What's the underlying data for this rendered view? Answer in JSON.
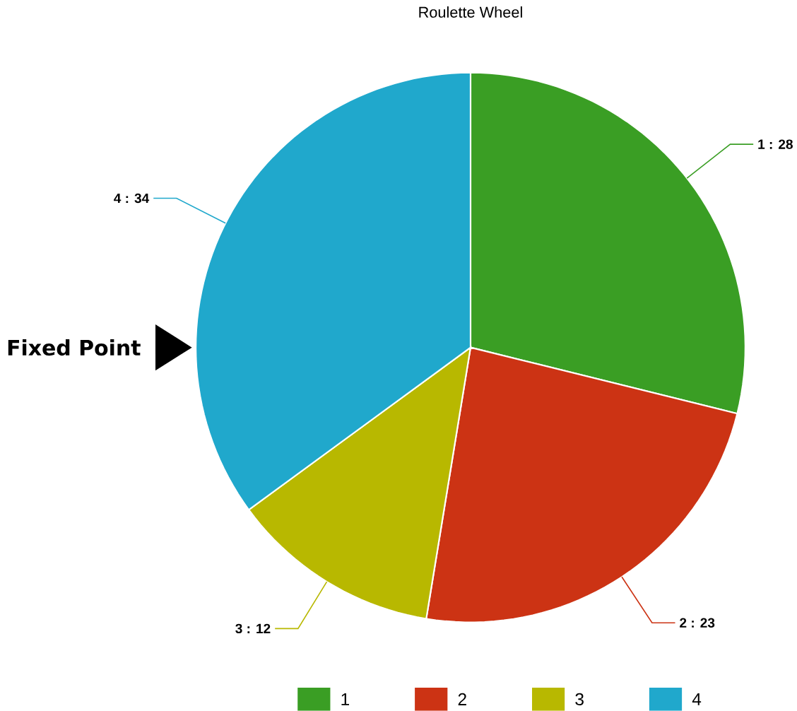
{
  "chart_data": {
    "type": "pie",
    "title": "Roulette Wheel",
    "categories": [
      "1",
      "2",
      "3",
      "4"
    ],
    "values": [
      28,
      23,
      12,
      34
    ],
    "colors": [
      "#3a9e24",
      "#cc3314",
      "#b8b800",
      "#20a8cc"
    ],
    "value_labels": [
      "1 : 28",
      "2 : 23",
      "3 : 12",
      "4 : 34"
    ],
    "legend": "bottom",
    "annotations": [
      "Fixed Point"
    ]
  }
}
